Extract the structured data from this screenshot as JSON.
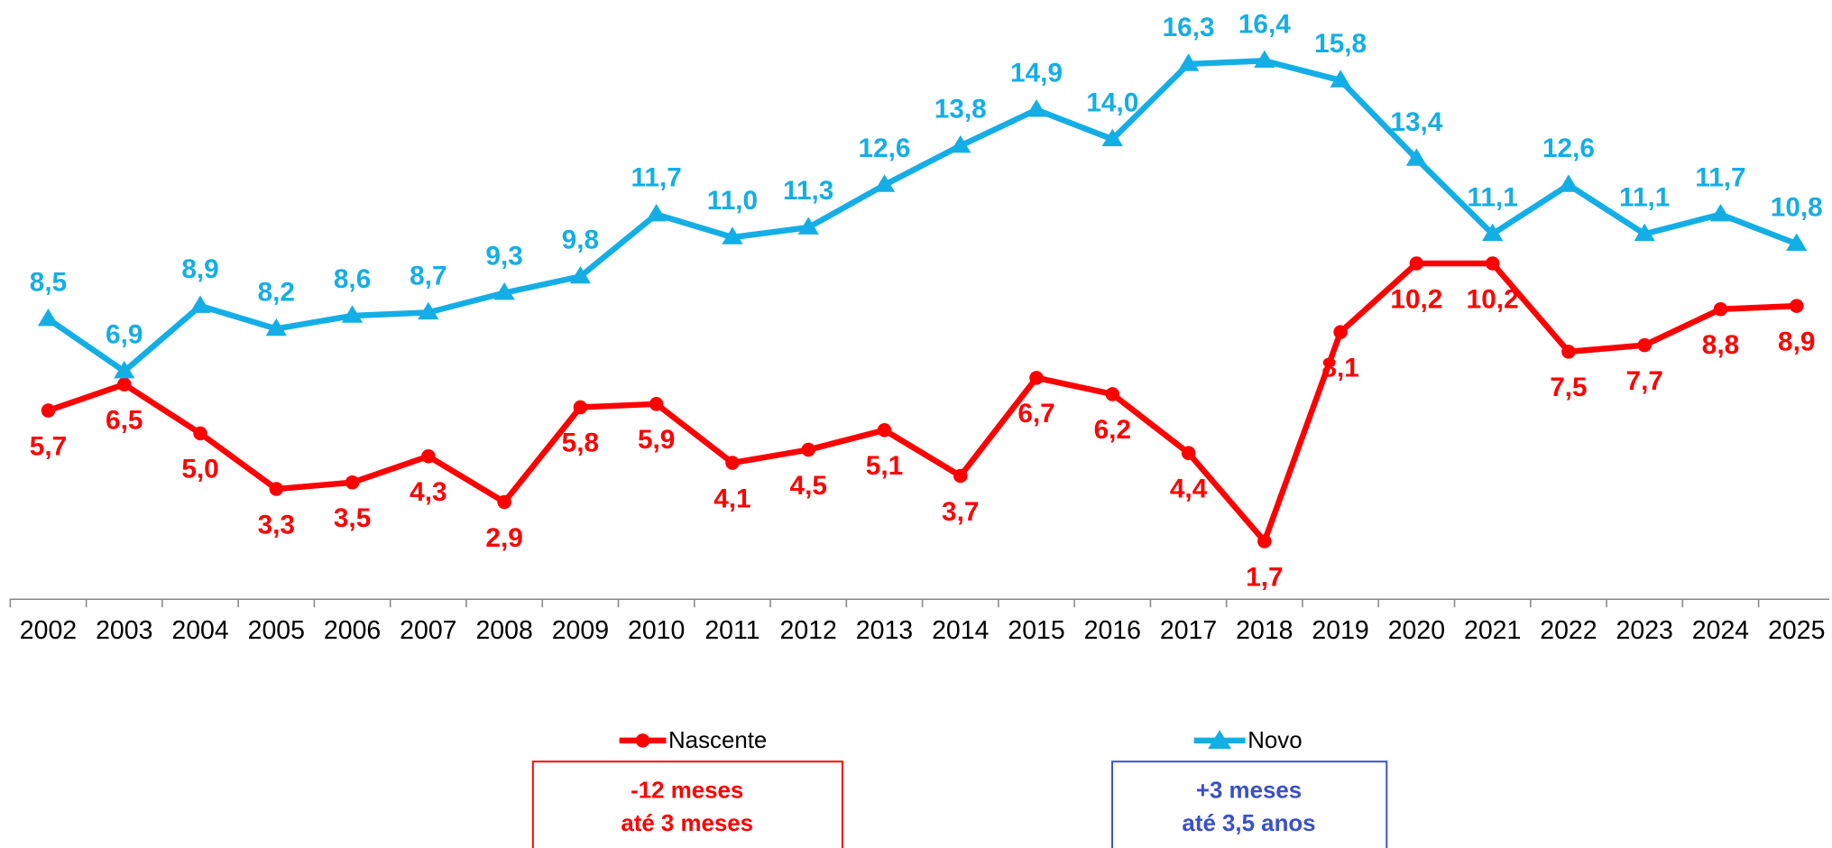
{
  "chart_data": {
    "type": "line",
    "categories": [
      "2002",
      "2003",
      "2004",
      "2005",
      "2006",
      "2007",
      "2008",
      "2009",
      "2010",
      "2011",
      "2012",
      "2013",
      "2014",
      "2015",
      "2016",
      "2017",
      "2018",
      "2019",
      "2020",
      "2021",
      "2022",
      "2023",
      "2024",
      "2025"
    ],
    "series": [
      {
        "name": "Nascente",
        "color": "#ff0000",
        "marker": "circle",
        "values": [
          5.7,
          6.5,
          5.0,
          3.3,
          3.5,
          4.3,
          2.9,
          5.8,
          5.9,
          4.1,
          4.5,
          5.1,
          3.7,
          6.7,
          6.2,
          4.4,
          1.7,
          8.1,
          10.2,
          10.2,
          7.5,
          7.7,
          8.8,
          8.9
        ],
        "value_labels": [
          "5,7",
          "6,5",
          "5,0",
          "3,3",
          "3,5",
          "4,3",
          "2,9",
          "5,8",
          "5,9",
          "4,1",
          "4,5",
          "5,1",
          "3,7",
          "6,7",
          "6,2",
          "4,4",
          "1,7",
          "8,1",
          "10,2",
          "10,2",
          "7,5",
          "7,7",
          "8,8",
          "8,9"
        ],
        "note": [
          "-12 meses",
          "até 3 meses"
        ]
      },
      {
        "name": "Novo",
        "color": "#14aee6",
        "marker": "triangle",
        "values": [
          8.5,
          6.9,
          8.9,
          8.2,
          8.6,
          8.7,
          9.3,
          9.8,
          11.7,
          11.0,
          11.3,
          12.6,
          13.8,
          14.9,
          14.0,
          16.3,
          16.4,
          15.8,
          13.4,
          11.1,
          12.6,
          11.1,
          11.7,
          10.8
        ],
        "value_labels": [
          "8,5",
          "6,9",
          "8,9",
          "8,2",
          "8,6",
          "8,7",
          "9,3",
          "9,8",
          "11,7",
          "11,0",
          "11,3",
          "12,6",
          "13,8",
          "14,9",
          "14,0",
          "16,3",
          "16,4",
          "15,8",
          "13,4",
          "11,1",
          "12,6",
          "11,1",
          "11,7",
          "10,8"
        ],
        "note": [
          "+3  meses",
          "até 3,5 anos"
        ]
      }
    ]
  }
}
